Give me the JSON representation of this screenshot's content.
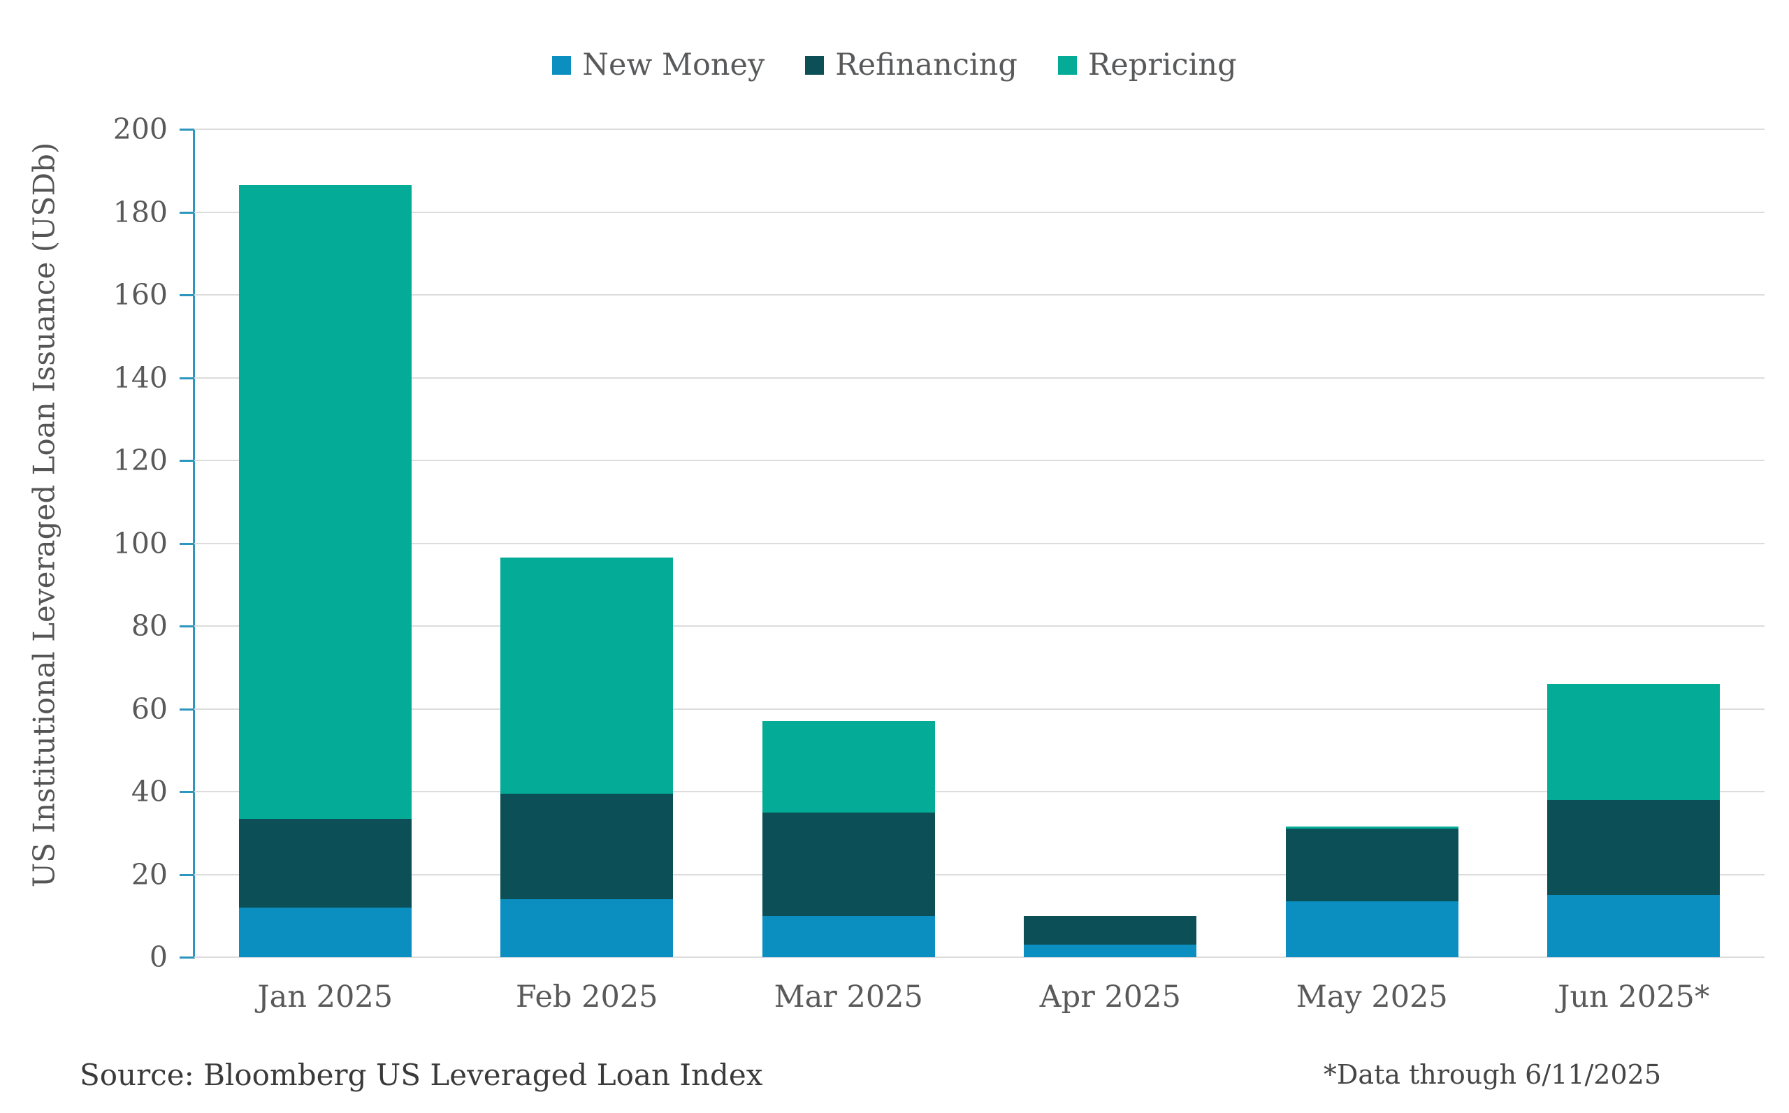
{
  "chart_data": {
    "type": "bar",
    "stacked": true,
    "title": "",
    "ylabel": "US Institutional Leveraged Loan Issuance (USDb)",
    "xlabel": "",
    "ylim": [
      0,
      200
    ],
    "yticks": [
      0,
      20,
      40,
      60,
      80,
      100,
      120,
      140,
      160,
      180,
      200
    ],
    "grid": true,
    "legend_position": "top",
    "categories": [
      "Jan 2025",
      "Feb 2025",
      "Mar 2025",
      "Apr 2025",
      "May 2025",
      "Jun 2025*"
    ],
    "series": [
      {
        "name": "New Money",
        "color": "#0a8fc0",
        "values": [
          12,
          14,
          10,
          3,
          13.5,
          15
        ]
      },
      {
        "name": "Refinancing",
        "color": "#0c4f56",
        "values": [
          21.5,
          25.5,
          25,
          7,
          17.5,
          23
        ]
      },
      {
        "name": "Repricing",
        "color": "#04ab97",
        "values": [
          153,
          57,
          22,
          0,
          0.5,
          28
        ]
      }
    ],
    "totals": [
      186.5,
      96.5,
      57,
      10,
      31.5,
      66
    ]
  },
  "colors": {
    "axis": "#2e96be",
    "gridline": "#dcdcdc",
    "tick_text": "#595959",
    "legend_text": "#58595b",
    "source_text": "#3a3a3a"
  },
  "source": "Source: Bloomberg US Leveraged Loan Index",
  "footnote": "*Data through 6/11/2025"
}
